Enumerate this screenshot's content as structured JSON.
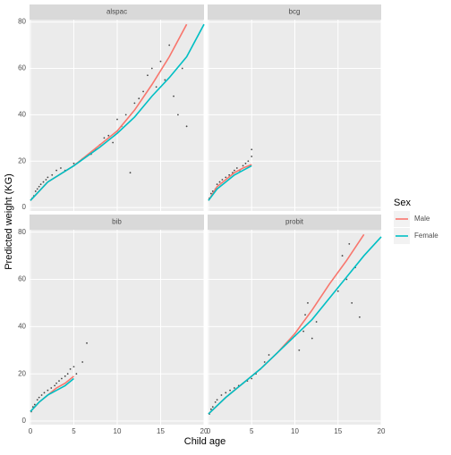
{
  "shared": {
    "x_label": "Child age",
    "y_label": "Predicted weight (KG)",
    "legend_title": "Sex"
  },
  "chart_data": [
    {
      "type": "scatter",
      "title": "alspac",
      "x": [
        0.2,
        0.4,
        0.6,
        0.8,
        1,
        1.2,
        1.5,
        1.8,
        2,
        2.5,
        3,
        3.5,
        4,
        5,
        6,
        7,
        7.5,
        8,
        8.5,
        9,
        9.5,
        10,
        10.5,
        11,
        11.5,
        12,
        12.5,
        13,
        13.5,
        14,
        14.5,
        15,
        15.5,
        16,
        16.5,
        17,
        17.5,
        18
      ],
      "values": [
        4,
        5,
        7,
        8,
        9,
        10,
        11,
        12,
        13,
        14,
        16,
        17,
        16,
        19,
        21,
        23,
        25,
        27,
        30,
        31,
        28,
        38,
        35,
        40,
        15,
        45,
        47,
        50,
        57,
        60,
        52,
        63,
        55,
        70,
        48,
        40,
        60,
        35
      ],
      "series": [
        {
          "name": "Male",
          "color": "#F8766D",
          "x": [
            0,
            2,
            5,
            8,
            10,
            12,
            14,
            16,
            18
          ],
          "values": [
            3,
            11,
            18,
            27,
            33,
            42,
            53,
            65,
            79
          ]
        },
        {
          "name": "Female",
          "color": "#00BFC4",
          "x": [
            0,
            2,
            5,
            8,
            10,
            12,
            14,
            16,
            18,
            20
          ],
          "values": [
            3,
            11,
            18,
            26,
            32,
            39,
            48,
            56,
            65,
            79
          ]
        }
      ],
      "xlim": [
        -0.1,
        20
      ],
      "ylim": [
        -1.5,
        81
      ],
      "xticks": [
        0,
        5,
        10,
        15,
        20
      ],
      "yticks": [
        0,
        20,
        40,
        60,
        80
      ]
    },
    {
      "type": "scatter",
      "title": "bcg",
      "x": [
        0.1,
        0.3,
        0.5,
        0.8,
        1,
        1.3,
        1.6,
        2,
        2.4,
        2.8,
        3,
        3.3,
        3.6,
        4,
        4.3,
        4.6,
        5,
        5
      ],
      "values": [
        4,
        6,
        7,
        8,
        10,
        11,
        12,
        13,
        14,
        15,
        16,
        17,
        16,
        18,
        19,
        20,
        22,
        25
      ],
      "series": [
        {
          "name": "Male",
          "color": "#F8766D",
          "x": [
            0,
            1,
            2,
            3,
            4,
            5
          ],
          "values": [
            3,
            9,
            12,
            15,
            17,
            18.5
          ]
        },
        {
          "name": "Female",
          "color": "#00BFC4",
          "x": [
            0,
            1,
            2,
            3,
            4,
            5
          ],
          "values": [
            3,
            8,
            11,
            14,
            16,
            18
          ]
        }
      ],
      "xlim": [
        -0.1,
        20
      ],
      "ylim": [
        -1.5,
        81
      ],
      "xticks": [
        0,
        5,
        10,
        15,
        20
      ],
      "yticks": [
        0,
        20,
        40,
        60,
        80
      ]
    },
    {
      "type": "scatter",
      "title": "bib",
      "x": [
        0.1,
        0.3,
        0.5,
        0.8,
        1,
        1.3,
        1.6,
        2,
        2.4,
        2.8,
        3,
        3.3,
        3.6,
        4,
        4.3,
        4.6,
        5,
        5.3,
        6,
        6.5
      ],
      "values": [
        4,
        6,
        7,
        9,
        10,
        11,
        12,
        13,
        14,
        15,
        16,
        17,
        18,
        19,
        20,
        22,
        23,
        20,
        25,
        33
      ],
      "series": [
        {
          "name": "Male",
          "color": "#F8766D",
          "x": [
            0,
            1,
            2,
            3,
            4,
            5
          ],
          "values": [
            4,
            8,
            11,
            14,
            16,
            19
          ]
        },
        {
          "name": "Female",
          "color": "#00BFC4",
          "x": [
            0,
            1,
            2,
            3,
            4,
            5
          ],
          "values": [
            4,
            8,
            11,
            13,
            15,
            18
          ]
        }
      ],
      "xlim": [
        -0.1,
        20
      ],
      "ylim": [
        -1.5,
        81
      ],
      "xticks": [
        0,
        5,
        10,
        15,
        20
      ],
      "yticks": [
        0,
        20,
        40,
        60,
        80
      ]
    },
    {
      "type": "scatter",
      "title": "probit",
      "x": [
        0.1,
        0.3,
        0.5,
        0.8,
        1,
        1.5,
        2,
        2.5,
        3,
        3.5,
        4,
        4.5,
        5,
        5.5,
        6,
        6.5,
        7,
        10.5,
        11,
        11.2,
        11.5,
        12,
        12.5,
        15,
        15.5,
        16,
        16.3,
        16.6,
        17,
        17.5
      ],
      "values": [
        3,
        5,
        6,
        8,
        9,
        11,
        12,
        13,
        14,
        15,
        16,
        17,
        18,
        20,
        22,
        25,
        28,
        30,
        38,
        45,
        50,
        35,
        42,
        55,
        70,
        60,
        75,
        50,
        65,
        44
      ],
      "series": [
        {
          "name": "Male",
          "color": "#F8766D",
          "x": [
            0,
            2,
            4,
            6,
            8,
            10,
            12,
            14,
            16,
            18
          ],
          "values": [
            3,
            10,
            16,
            22,
            29,
            37,
            47,
            58,
            68,
            79
          ]
        },
        {
          "name": "Female",
          "color": "#00BFC4",
          "x": [
            0,
            2,
            4,
            6,
            8,
            10,
            12,
            14,
            16,
            18,
            20
          ],
          "values": [
            3,
            10,
            16,
            22,
            29,
            36,
            43,
            52,
            61,
            70,
            78
          ]
        }
      ],
      "xlim": [
        -0.1,
        20
      ],
      "ylim": [
        -1.5,
        81
      ],
      "xticks": [
        0,
        5,
        10,
        15,
        20
      ],
      "yticks": [
        0,
        20,
        40,
        60,
        80
      ]
    }
  ]
}
